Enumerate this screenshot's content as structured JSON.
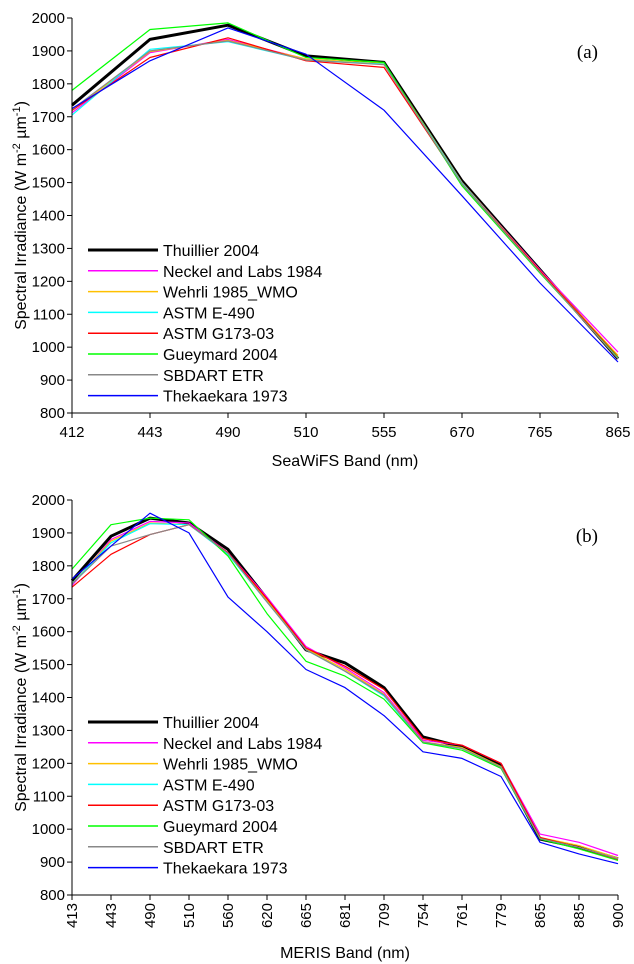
{
  "chart_data": [
    {
      "type": "line",
      "panel_label": "(a)",
      "xlabel": "SeaWiFS Band (nm)",
      "ylabel": "Spectral Irradiance (W m",
      "ylabel_sup1": "-2",
      "ylabel_mid": " µm",
      "ylabel_sup2": "-1",
      "ylabel_end": ")",
      "categories": [
        "412",
        "443",
        "490",
        "510",
        "555",
        "670",
        "765",
        "865"
      ],
      "ylim": [
        800,
        2000
      ],
      "yticks": [
        800,
        900,
        1000,
        1100,
        1200,
        1300,
        1400,
        1500,
        1600,
        1700,
        1800,
        1900,
        2000
      ],
      "grid": false,
      "legend_position": "bottom-left",
      "series": [
        {
          "name": "Thuillier 2004",
          "color": "#000000",
          "width": 3,
          "values": [
            1735,
            1935,
            1978,
            1885,
            1865,
            1505,
            1235,
            965
          ]
        },
        {
          "name": "Neckel and Labs 1984",
          "color": "#ff00ff",
          "width": 1.2,
          "values": [
            1712,
            1895,
            1935,
            1875,
            1860,
            1500,
            1235,
            985
          ]
        },
        {
          "name": "Wehrli 1985_WMO",
          "color": "#ffc000",
          "width": 1.2,
          "values": [
            1718,
            1898,
            1932,
            1875,
            1862,
            1500,
            1232,
            975
          ]
        },
        {
          "name": "ASTM E-490",
          "color": "#00ffff",
          "width": 1.2,
          "values": [
            1705,
            1905,
            1928,
            1872,
            1860,
            1498,
            1230,
            968
          ]
        },
        {
          "name": "ASTM G173-03",
          "color": "#ff0000",
          "width": 1.2,
          "values": [
            1720,
            1880,
            1940,
            1870,
            1850,
            1495,
            1232,
            970
          ]
        },
        {
          "name": "Gueymard 2004",
          "color": "#00ff00",
          "width": 1.2,
          "values": [
            1780,
            1965,
            1985,
            1880,
            1865,
            1490,
            1225,
            968
          ]
        },
        {
          "name": "SBDART ETR",
          "color": "#888888",
          "width": 1.2,
          "values": [
            1722,
            1900,
            1930,
            1872,
            1858,
            1495,
            1228,
            965
          ]
        },
        {
          "name": "Thekaekara 1973",
          "color": "#0000ff",
          "width": 1.2,
          "values": [
            1725,
            1870,
            1970,
            1890,
            1720,
            1460,
            1195,
            955
          ]
        }
      ]
    },
    {
      "type": "line",
      "panel_label": "(b)",
      "xlabel": "MERIS Band (nm)",
      "ylabel": "Spectral Irradiance (W m",
      "ylabel_sup1": "-2",
      "ylabel_mid": " µm",
      "ylabel_sup2": "-1",
      "ylabel_end": ")",
      "categories": [
        "413",
        "443",
        "490",
        "510",
        "560",
        "620",
        "665",
        "681",
        "709",
        "754",
        "761",
        "779",
        "865",
        "885",
        "900"
      ],
      "ylim": [
        800,
        2000
      ],
      "yticks": [
        800,
        900,
        1000,
        1100,
        1200,
        1300,
        1400,
        1500,
        1600,
        1700,
        1800,
        1900,
        2000
      ],
      "grid": false,
      "legend_position": "bottom-left",
      "series": [
        {
          "name": "Thuillier 2004",
          "color": "#000000",
          "width": 3,
          "values": [
            1755,
            1890,
            1945,
            1930,
            1850,
            1700,
            1545,
            1505,
            1430,
            1280,
            1250,
            1195,
            970,
            945,
            910
          ]
        },
        {
          "name": "Neckel and Labs 1984",
          "color": "#ff00ff",
          "width": 1.2,
          "values": [
            1740,
            1880,
            1935,
            1930,
            1840,
            1705,
            1555,
            1490,
            1415,
            1270,
            1255,
            1200,
            985,
            960,
            920
          ]
        },
        {
          "name": "Wehrli 1985_WMO",
          "color": "#ffc000",
          "width": 1.2,
          "values": [
            1745,
            1875,
            1930,
            1925,
            1838,
            1695,
            1548,
            1485,
            1410,
            1265,
            1248,
            1190,
            975,
            950,
            912
          ]
        },
        {
          "name": "ASTM E-490",
          "color": "#00ffff",
          "width": 1.2,
          "values": [
            1745,
            1870,
            1928,
            1925,
            1835,
            1690,
            1545,
            1480,
            1405,
            1262,
            1245,
            1188,
            972,
            945,
            910
          ]
        },
        {
          "name": "ASTM G173-03",
          "color": "#ff0000",
          "width": 1.2,
          "values": [
            1735,
            1835,
            1895,
            1925,
            1840,
            1700,
            1550,
            1495,
            1425,
            1275,
            1255,
            1200,
            975,
            945,
            908
          ]
        },
        {
          "name": "Gueymard 2004",
          "color": "#00ff00",
          "width": 1.2,
          "values": [
            1790,
            1925,
            1945,
            1940,
            1830,
            1655,
            1510,
            1465,
            1395,
            1262,
            1240,
            1185,
            970,
            940,
            905
          ]
        },
        {
          "name": "SBDART ETR",
          "color": "#888888",
          "width": 1.2,
          "values": [
            1745,
            1860,
            1895,
            1925,
            1838,
            1690,
            1545,
            1480,
            1408,
            1265,
            1245,
            1188,
            972,
            945,
            910
          ]
        },
        {
          "name": "Thekaekara 1973",
          "color": "#0000ff",
          "width": 1.2,
          "values": [
            1760,
            1860,
            1960,
            1900,
            1705,
            1600,
            1485,
            1430,
            1345,
            1235,
            1215,
            1160,
            960,
            925,
            895
          ]
        }
      ]
    }
  ]
}
